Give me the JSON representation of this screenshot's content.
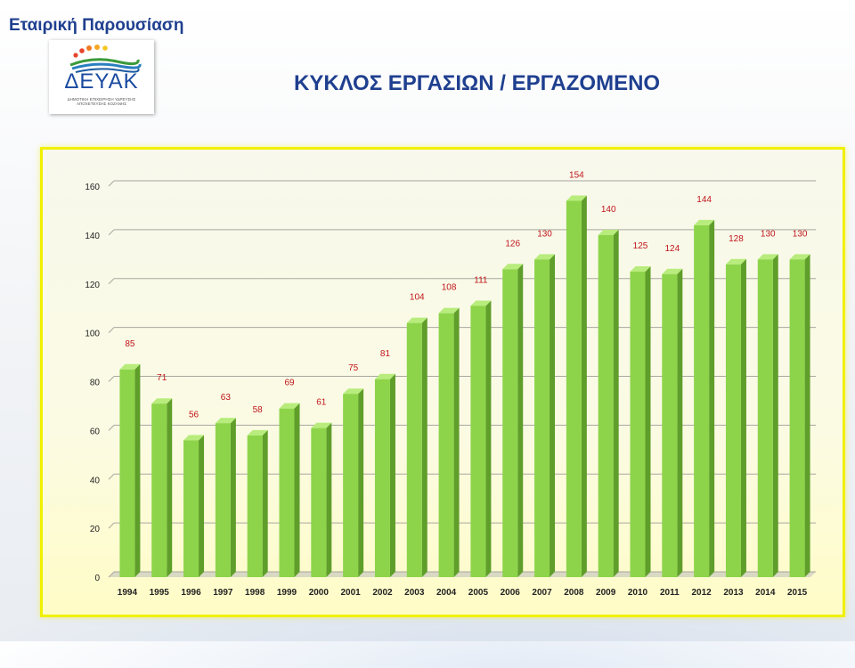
{
  "header": {
    "presentation_title": "Εταιρική Παρουσίαση"
  },
  "logo": {
    "name": "ΔΕΥΑΚ",
    "subtitle": "ΔΗΜΟΤΙΚΗ ΕΠΙΧΕΙΡΗΣΗ ΥΔΡΕΥΣΗΣ ΑΠΟΧΕΤΕΥΣΗΣ ΚΟΖΑΝΗΣ"
  },
  "slide": {
    "title": "ΚΥΚΛΟΣ ΕΡΓΑΣΙΩΝ / ΕΡΓΑΖΟΜΕΝΟ"
  },
  "colors": {
    "bar_front": "#8dd44a",
    "bar_side": "#5f9e2a",
    "bar_top": "#b8ec7c",
    "label": "#c0151a",
    "title_blue": "#1f3f8f",
    "frame": "#f0f000"
  },
  "chart_data": {
    "type": "bar",
    "title": "",
    "xlabel": "",
    "ylabel": "",
    "categories": [
      "1994",
      "1995",
      "1996",
      "1997",
      "1998",
      "1999",
      "2000",
      "2001",
      "2002",
      "2003",
      "2004",
      "2005",
      "2006",
      "2007",
      "2008",
      "2009",
      "2010",
      "2011",
      "2012",
      "2013",
      "2014",
      "2015"
    ],
    "values": [
      85,
      71,
      56,
      63,
      58,
      69,
      61,
      75,
      81,
      104,
      108,
      111,
      126,
      130,
      154,
      140,
      125,
      124,
      144,
      128,
      130,
      130
    ],
    "ylim": [
      0,
      160
    ],
    "yticks": [
      0,
      20,
      40,
      60,
      80,
      100,
      120,
      140,
      160
    ],
    "grid": true,
    "legend": "none"
  }
}
